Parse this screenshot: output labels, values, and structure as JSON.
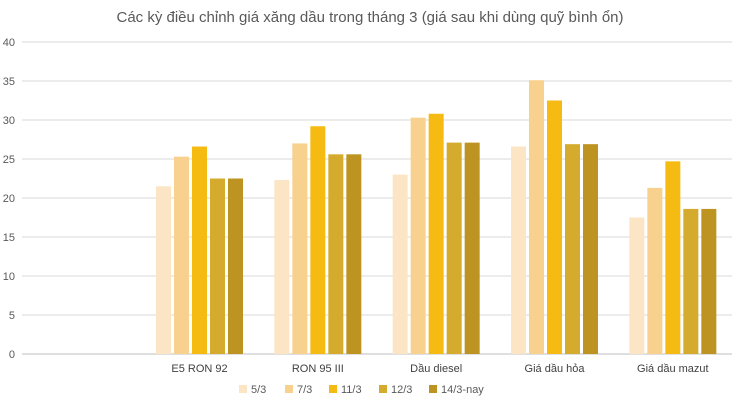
{
  "chart_data": {
    "type": "bar",
    "title": "Các kỳ điều chỉnh giá xăng dầu trong tháng 3 (giá sau khi dùng quỹ bình ổn)",
    "xlabel": "",
    "ylabel": "",
    "ylim": [
      0,
      40
    ],
    "yticks": [
      0,
      5,
      10,
      15,
      20,
      25,
      30,
      35,
      40
    ],
    "grid": true,
    "legend_position": "bottom",
    "categories": [
      "",
      "E5 RON 92",
      "RON 95 III",
      "Dầu diesel",
      "Giá dầu hỏa",
      "Giá dầu mazut"
    ],
    "series": [
      {
        "name": "5/3",
        "color": "#fbe5c4",
        "values": [
          null,
          21.5,
          22.3,
          23.0,
          26.6,
          17.5
        ]
      },
      {
        "name": "7/3",
        "color": "#f9d18e",
        "values": [
          null,
          25.3,
          27.0,
          30.3,
          35.1,
          21.3
        ]
      },
      {
        "name": "11/3",
        "color": "#f6bb12",
        "values": [
          null,
          26.6,
          29.2,
          30.8,
          32.5,
          24.7
        ]
      },
      {
        "name": "12/3",
        "color": "#d4ab2d",
        "values": [
          null,
          22.5,
          25.6,
          27.1,
          26.9,
          18.6
        ]
      },
      {
        "name": "14/3-nay",
        "color": "#bd9321",
        "values": [
          null,
          22.5,
          25.6,
          27.1,
          26.9,
          18.6
        ]
      }
    ]
  }
}
